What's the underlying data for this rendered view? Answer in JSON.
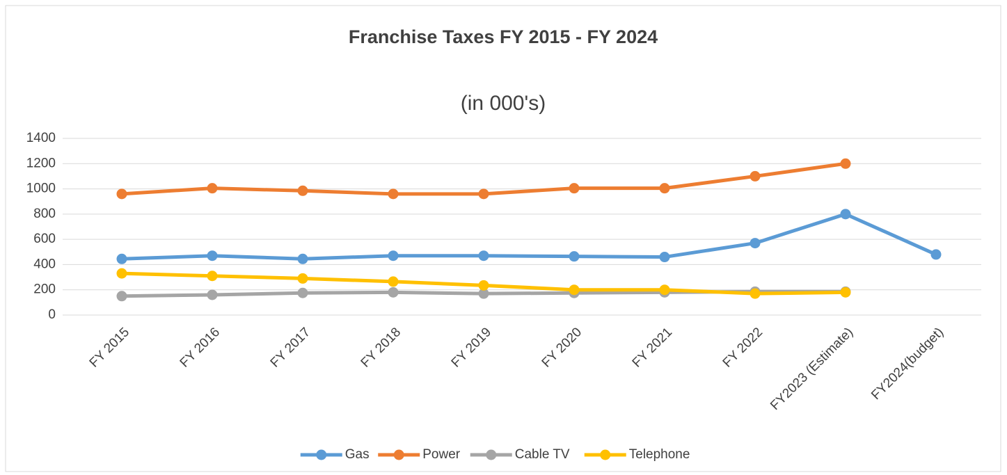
{
  "chart_data": {
    "type": "line",
    "title": "Franchise Taxes FY 2015 - FY 2024",
    "subtitle": "(in 000's)",
    "categories": [
      "FY 2015",
      "FY 2016",
      "FY 2017",
      "FY 2018",
      "FY 2019",
      "FY 2020",
      "FY 2021",
      "FY 2022",
      "FY2023 (Estimate)",
      "FY2024(budget)"
    ],
    "series": [
      {
        "name": "Gas",
        "color": "#5b9bd5",
        "values": [
          445,
          470,
          445,
          470,
          470,
          465,
          460,
          570,
          800,
          480
        ]
      },
      {
        "name": "Power",
        "color": "#ed7d31",
        "values": [
          960,
          1005,
          985,
          960,
          960,
          1005,
          1005,
          1100,
          1200,
          null
        ]
      },
      {
        "name": "Cable TV",
        "color": "#a5a5a5",
        "values": [
          150,
          160,
          175,
          180,
          170,
          175,
          180,
          185,
          185,
          null
        ]
      },
      {
        "name": "Telephone",
        "color": "#ffc000",
        "values": [
          330,
          310,
          290,
          265,
          235,
          200,
          200,
          170,
          180,
          null
        ]
      }
    ],
    "ylim": [
      0,
      1400
    ],
    "yticks": [
      0,
      200,
      400,
      600,
      800,
      1000,
      1200,
      1400
    ],
    "grid": true,
    "legend": "bottom"
  }
}
